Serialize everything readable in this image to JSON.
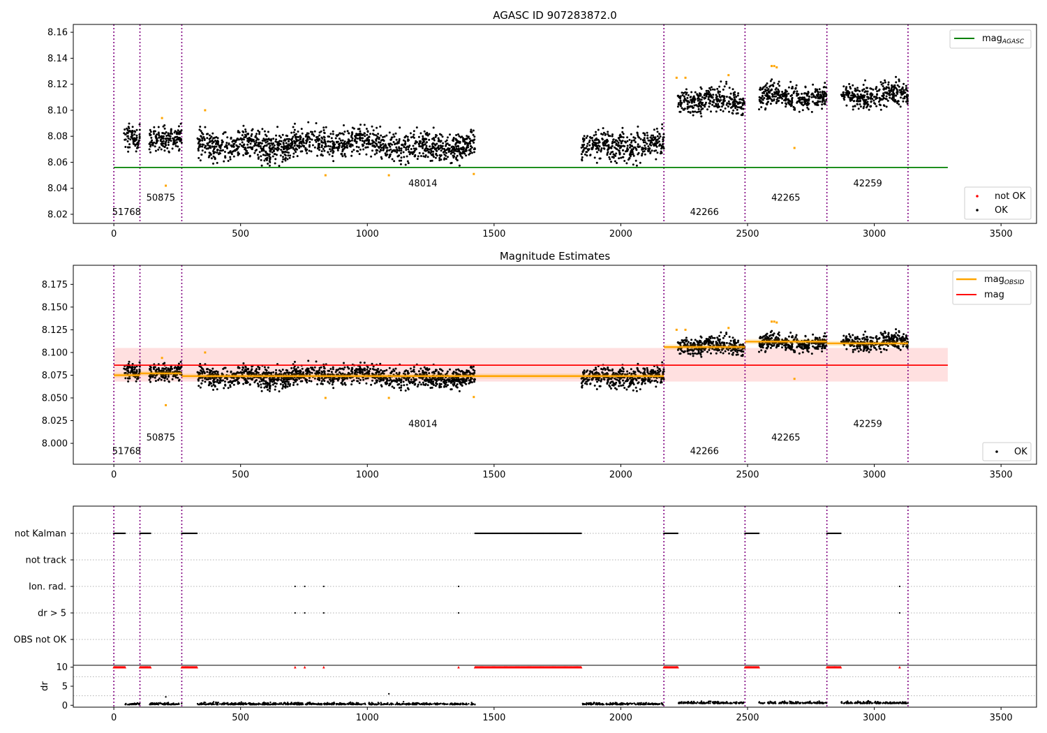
{
  "chart_data": [
    {
      "type": "scatter",
      "title": "AGASC ID 907283872.0",
      "xlim": [
        -160,
        3640
      ],
      "ylim": [
        8.013,
        8.166
      ],
      "x_ticks": [
        0,
        500,
        1000,
        1500,
        2000,
        2500,
        3000,
        3500
      ],
      "y_ticks": [
        8.02,
        8.04,
        8.06,
        8.08,
        8.1,
        8.12,
        8.14,
        8.16
      ],
      "obs_boundaries": [
        0,
        103,
        268,
        2170,
        2490,
        2813,
        3133
      ],
      "obs_labels": [
        {
          "label": "51768",
          "x": 50,
          "y": 8.0195
        },
        {
          "label": "50875",
          "x": 185,
          "y": 8.0305
        },
        {
          "label": "48014",
          "x": 1219,
          "y": 8.0415
        },
        {
          "label": "42266",
          "x": 2330,
          "y": 8.0195
        },
        {
          "label": "42265",
          "x": 2651,
          "y": 8.0305
        },
        {
          "label": "42259",
          "x": 2974,
          "y": 8.0415
        }
      ],
      "reference_line": {
        "name": "mag",
        "subscript": "AGASC",
        "value": 8.056,
        "x_range": [
          0,
          3290
        ],
        "color": "#008000"
      },
      "scatter_legend": [
        {
          "name": "not OK",
          "color": "#ff0000"
        },
        {
          "name": "OK",
          "color": "#000000"
        }
      ],
      "groups": [
        {
          "x_range": [
            40,
            103
          ],
          "mean": 8.076,
          "spread": 0.0055
        },
        {
          "x_range": [
            140,
            268
          ],
          "mean": 8.077,
          "spread": 0.0055
        },
        {
          "x_range": [
            330,
            1425
          ],
          "mean": 8.074,
          "spread": 0.0065
        },
        {
          "x_range": [
            1845,
            2170
          ],
          "mean": 8.074,
          "spread": 0.0065
        },
        {
          "x_range": [
            2225,
            2490
          ],
          "mean": 8.106,
          "spread": 0.0055
        },
        {
          "x_range": [
            2545,
            2813
          ],
          "mean": 8.112,
          "spread": 0.0055
        },
        {
          "x_range": [
            2870,
            3133
          ],
          "mean": 8.11,
          "spread": 0.0052
        }
      ],
      "flagged_points": [
        {
          "x": 190,
          "y": 8.094
        },
        {
          "x": 205,
          "y": 8.042
        },
        {
          "x": 360,
          "y": 8.1
        },
        {
          "x": 835,
          "y": 8.05
        },
        {
          "x": 1085,
          "y": 8.05
        },
        {
          "x": 1420,
          "y": 8.051
        },
        {
          "x": 2220,
          "y": 8.125
        },
        {
          "x": 2255,
          "y": 8.125
        },
        {
          "x": 2425,
          "y": 8.127
        },
        {
          "x": 2595,
          "y": 8.134
        },
        {
          "x": 2605,
          "y": 8.134
        },
        {
          "x": 2615,
          "y": 8.133
        },
        {
          "x": 2685,
          "y": 8.071
        }
      ]
    },
    {
      "type": "scatter",
      "title": "Magnitude Estimates",
      "xlim": [
        -160,
        3640
      ],
      "ylim": [
        7.977,
        8.196
      ],
      "x_ticks": [
        0,
        500,
        1000,
        1500,
        2000,
        2500,
        3000,
        3500
      ],
      "y_ticks": [
        8.0,
        8.025,
        8.05,
        8.075,
        8.1,
        8.125,
        8.15,
        8.175
      ],
      "y_tick_labels": [
        "8.000",
        "8.025",
        "8.050",
        "8.075",
        "8.100",
        "8.125",
        "8.150",
        "8.175"
      ],
      "obs_boundaries": [
        0,
        103,
        268,
        2170,
        2490,
        2813,
        3133
      ],
      "obs_labels": [
        {
          "label": "51768",
          "x": 50,
          "y": 7.988
        },
        {
          "label": "50875",
          "x": 185,
          "y": 8.003
        },
        {
          "label": "48014",
          "x": 1219,
          "y": 8.018
        },
        {
          "label": "42266",
          "x": 2330,
          "y": 7.988
        },
        {
          "label": "42265",
          "x": 2651,
          "y": 8.003
        },
        {
          "label": "42259",
          "x": 2974,
          "y": 8.018
        }
      ],
      "mag": {
        "name": "mag",
        "value": 8.086,
        "band": [
          8.068,
          8.105
        ],
        "x_range": [
          0,
          3290
        ],
        "color": "#ff0000"
      },
      "obsid_mags": {
        "name": "mag",
        "subscript": "OBSID",
        "color": "#ffa500",
        "segments": [
          {
            "x_range": [
              0,
              103
            ],
            "value": 8.075
          },
          {
            "x_range": [
              103,
              268
            ],
            "value": 8.077
          },
          {
            "x_range": [
              268,
              2170
            ],
            "value": 8.074
          },
          {
            "x_range": [
              2170,
              2490
            ],
            "value": 8.106
          },
          {
            "x_range": [
              2490,
              2813
            ],
            "value": 8.112
          },
          {
            "x_range": [
              2813,
              3133
            ],
            "value": 8.11
          }
        ]
      },
      "scatter_legend": [
        {
          "name": "OK",
          "color": "#000000"
        }
      ]
    },
    {
      "type": "scatter",
      "xlim": [
        -160,
        3640
      ],
      "x_ticks": [
        0,
        500,
        1000,
        1500,
        2000,
        2500,
        3000,
        3500
      ],
      "flag_rows": [
        "not Kalman",
        "not track",
        "Ion. rad.",
        "dr > 5",
        "OBS not OK"
      ],
      "flag_events": {
        "not Kalman": [
          [
            0,
            45
          ],
          [
            103,
            145
          ],
          [
            268,
            330
          ],
          [
            1425,
            1845
          ],
          [
            2170,
            2225
          ],
          [
            2490,
            2545
          ],
          [
            2813,
            2870
          ]
        ],
        "not track": [],
        "Ion. rad.": [
          715,
          753,
          828,
          1360,
          3100
        ],
        "dr > 5": [
          715,
          753,
          828,
          1360,
          3100
        ],
        "OBS not OK": []
      },
      "dr_axis": {
        "label": "dr",
        "ylim": [
          -0.5,
          10.5
        ],
        "y_ticks": [
          0,
          5,
          10
        ],
        "clip_value": 10
      },
      "dr_outliers": [
        {
          "x": 205,
          "y": 2.2
        },
        {
          "x": 1085,
          "y": 3.0
        }
      ]
    }
  ]
}
